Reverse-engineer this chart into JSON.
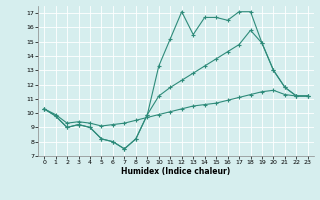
{
  "title": "",
  "xlabel": "Humidex (Indice chaleur)",
  "ylabel": "",
  "background_color": "#d6eeee",
  "grid_color": "#ffffff",
  "line_color": "#2e8b7a",
  "xlim": [
    -0.5,
    23.5
  ],
  "ylim": [
    7,
    17.5
  ],
  "yticks": [
    7,
    8,
    9,
    10,
    11,
    12,
    13,
    14,
    15,
    16,
    17
  ],
  "xticks": [
    0,
    1,
    2,
    3,
    4,
    5,
    6,
    7,
    8,
    9,
    10,
    11,
    12,
    13,
    14,
    15,
    16,
    17,
    18,
    19,
    20,
    21,
    22,
    23
  ],
  "series1": [
    10.3,
    9.8,
    9.0,
    9.2,
    9.0,
    8.2,
    8.0,
    7.5,
    8.2,
    9.9,
    13.3,
    15.2,
    17.1,
    15.5,
    16.7,
    16.7,
    16.5,
    17.1,
    17.1,
    14.9,
    13.0,
    11.8,
    11.2,
    11.2
  ],
  "series2": [
    10.3,
    9.8,
    9.0,
    9.2,
    9.0,
    8.2,
    8.0,
    7.5,
    8.2,
    9.9,
    11.2,
    11.8,
    12.3,
    12.8,
    13.3,
    13.8,
    14.3,
    14.8,
    15.8,
    14.9,
    13.0,
    11.8,
    11.2,
    11.2
  ],
  "series3": [
    10.3,
    9.9,
    9.3,
    9.4,
    9.3,
    9.1,
    9.2,
    9.3,
    9.5,
    9.7,
    9.9,
    10.1,
    10.3,
    10.5,
    10.6,
    10.7,
    10.9,
    11.1,
    11.3,
    11.5,
    11.6,
    11.3,
    11.2,
    11.2
  ]
}
